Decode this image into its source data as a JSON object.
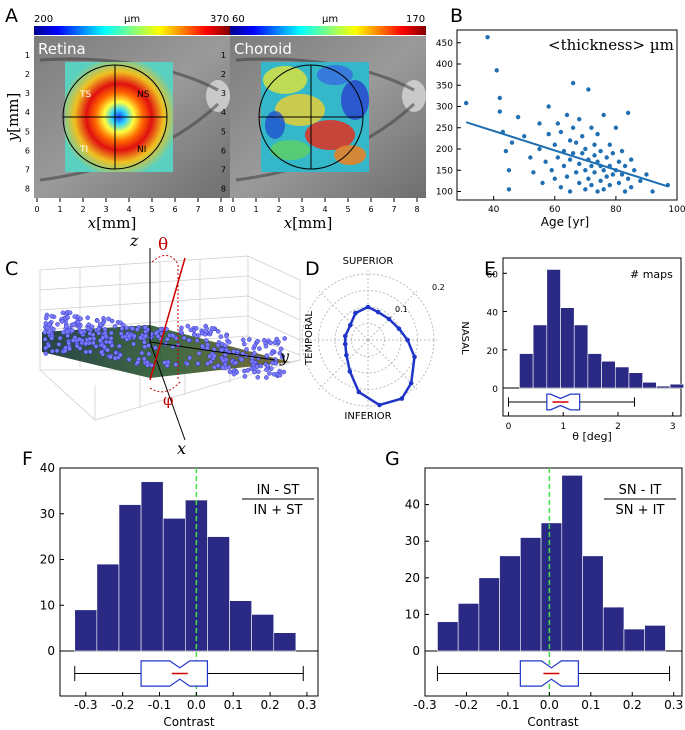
{
  "panels": {
    "A": {
      "label": "A",
      "retina": {
        "name": "Retina",
        "cb_min": "200",
        "cb_max": "370",
        "cb_unit": "µm",
        "quadrants": [
          "TS",
          "NS",
          "TI",
          "NI"
        ]
      },
      "choroid": {
        "name": "Choroid",
        "cb_min": "60",
        "cb_max": "170",
        "cb_unit": "µm"
      },
      "xticks": [
        "0",
        "1",
        "2",
        "3",
        "4",
        "5",
        "6",
        "7",
        "8"
      ],
      "yticks": [
        "1",
        "2",
        "3",
        "4",
        "5",
        "6",
        "7",
        "8"
      ],
      "xlabel_var": "x",
      "xlabel_unit": "[mm]",
      "ylabel_var": "y",
      "ylabel_unit": "[mm]"
    },
    "B": {
      "label": "B",
      "annotation": "<thickness> µm",
      "xlabel": "Age [yr]",
      "xticks": [
        "40",
        "60",
        "80",
        "100"
      ],
      "yticks": [
        "100",
        "150",
        "200",
        "250",
        "300",
        "350",
        "400",
        "450"
      ],
      "color": "#1f6fb2"
    },
    "C": {
      "label": "C",
      "axis_z": "z",
      "axis_y": "y",
      "axis_x": "x",
      "angle_theta": "θ",
      "angle_phi": "φ"
    },
    "D": {
      "label": "D",
      "directions": [
        "SUPERIOR",
        "NASAL",
        "INFERIOR",
        "TEMPORAL"
      ],
      "radial_labels": [
        "0.1",
        "0.2"
      ]
    },
    "E": {
      "label": "E",
      "annotation": "# maps",
      "xlabel": "θ [deg]",
      "xticks": [
        "0",
        "1",
        "2",
        "3"
      ],
      "yticks": [
        "0",
        "20",
        "40",
        "60"
      ]
    },
    "F": {
      "label": "F",
      "formula_num": "IN - ST",
      "formula_den": "IN + ST",
      "xlabel": "Contrast",
      "xticks": [
        "-0.3",
        "-0.2",
        "-0.1",
        "0.0",
        "0.1",
        "0.2",
        "0.3"
      ],
      "yticks": [
        "0",
        "10",
        "20",
        "30",
        "40"
      ]
    },
    "G": {
      "label": "G",
      "formula_num": "SN - IT",
      "formula_den": "SN + IT",
      "xlabel": "Contrast",
      "xticks": [
        "-0.3",
        "-0.2",
        "-0.1",
        "0.0",
        "0.1",
        "0.2",
        "0.3"
      ],
      "yticks": [
        "0",
        "10",
        "20",
        "30",
        "40"
      ]
    }
  },
  "colors": {
    "bar": "#2a2a85",
    "box": "#1f35c8",
    "zero_line": "#44dd44",
    "scatter": "#1f6fb2",
    "polar": "#1f35c8"
  },
  "chart_data": [
    {
      "id": "B",
      "type": "scatter",
      "title": "<thickness> µm",
      "xlabel": "Age [yr]",
      "ylabel": "",
      "xlim": [
        28,
        100
      ],
      "ylim": [
        80,
        480
      ],
      "points": [
        [
          31,
          308
        ],
        [
          38,
          463
        ],
        [
          41,
          385
        ],
        [
          42,
          320
        ],
        [
          42,
          288
        ],
        [
          43,
          240
        ],
        [
          44,
          195
        ],
        [
          45,
          150
        ],
        [
          45,
          105
        ],
        [
          46,
          215
        ],
        [
          48,
          275
        ],
        [
          50,
          230
        ],
        [
          52,
          180
        ],
        [
          53,
          145
        ],
        [
          55,
          260
        ],
        [
          55,
          200
        ],
        [
          56,
          120
        ],
        [
          57,
          170
        ],
        [
          58,
          235
        ],
        [
          58,
          300
        ],
        [
          59,
          150
        ],
        [
          60,
          210
        ],
        [
          60,
          130
        ],
        [
          61,
          180
        ],
        [
          61,
          260
        ],
        [
          62,
          110
        ],
        [
          62,
          240
        ],
        [
          63,
          195
        ],
        [
          63,
          160
        ],
        [
          64,
          280
        ],
        [
          64,
          135
        ],
        [
          65,
          220
        ],
        [
          65,
          175
        ],
        [
          65,
          100
        ],
        [
          66,
          250
        ],
        [
          66,
          190
        ],
        [
          66,
          355
        ],
        [
          67,
          145
        ],
        [
          67,
          215
        ],
        [
          68,
          165
        ],
        [
          68,
          120
        ],
        [
          68,
          270
        ],
        [
          69,
          190
        ],
        [
          69,
          230
        ],
        [
          70,
          150
        ],
        [
          70,
          105
        ],
        [
          70,
          200
        ],
        [
          71,
          175
        ],
        [
          71,
          130
        ],
        [
          71,
          340
        ],
        [
          72,
          250
        ],
        [
          72,
          160
        ],
        [
          72,
          115
        ],
        [
          73,
          210
        ],
        [
          73,
          185
        ],
        [
          73,
          145
        ],
        [
          74,
          170
        ],
        [
          74,
          100
        ],
        [
          74,
          235
        ],
        [
          75,
          160
        ],
        [
          75,
          125
        ],
        [
          75,
          195
        ],
        [
          76,
          150
        ],
        [
          76,
          280
        ],
        [
          76,
          105
        ],
        [
          77,
          180
        ],
        [
          77,
          135
        ],
        [
          78,
          210
        ],
        [
          78,
          160
        ],
        [
          78,
          115
        ],
        [
          79,
          140
        ],
        [
          79,
          190
        ],
        [
          80,
          150
        ],
        [
          80,
          250
        ],
        [
          81,
          120
        ],
        [
          81,
          170
        ],
        [
          82,
          195
        ],
        [
          82,
          140
        ],
        [
          83,
          100
        ],
        [
          83,
          160
        ],
        [
          84,
          285
        ],
        [
          84,
          130
        ],
        [
          85,
          175
        ],
        [
          85,
          110
        ],
        [
          86,
          150
        ],
        [
          88,
          125
        ],
        [
          90,
          140
        ],
        [
          92,
          100
        ],
        [
          97,
          115
        ]
      ],
      "fit_line": {
        "x": [
          31,
          97
        ],
        "y": [
          263,
          112
        ]
      }
    },
    {
      "id": "D",
      "type": "polar",
      "r_ticks": [
        0.1,
        0.2
      ],
      "angles_deg": [
        90,
        70,
        45,
        20,
        0,
        -20,
        -45,
        -60,
        -80,
        -100,
        -120,
        -145,
        -170,
        170,
        140,
        115
      ],
      "r": [
        0.1,
        0.09,
        0.09,
        0.1,
        0.12,
        0.15,
        0.185,
        0.205,
        0.2,
        0.16,
        0.11,
        0.08,
        0.07,
        0.07,
        0.07,
        0.09
      ]
    },
    {
      "id": "E",
      "type": "bar",
      "title": "# maps",
      "xlabel": "θ [deg]",
      "ylabel": "",
      "xlim": [
        -0.1,
        3.15
      ],
      "ylim": [
        0,
        68
      ],
      "bin_edges": [
        0.2,
        0.45,
        0.7,
        0.95,
        1.2,
        1.45,
        1.7,
        1.95,
        2.2,
        2.45,
        2.7,
        2.95,
        3.2
      ],
      "values": [
        18,
        33,
        62,
        42,
        33,
        18,
        14,
        11,
        8,
        3,
        1,
        2
      ],
      "box": {
        "whisker_low": 0.0,
        "q1": 0.7,
        "median": 0.95,
        "q3": 1.3,
        "whisker_high": 2.3
      }
    },
    {
      "id": "F",
      "type": "bar",
      "title": "(IN - ST)/(IN + ST)",
      "xlabel": "Contrast",
      "ylabel": "",
      "xlim": [
        -0.37,
        0.33
      ],
      "ylim": [
        0,
        40
      ],
      "bin_edges": [
        -0.33,
        -0.27,
        -0.21,
        -0.15,
        -0.09,
        -0.03,
        0.03,
        0.09,
        0.15,
        0.21,
        0.27
      ],
      "values": [
        9,
        19,
        32,
        37,
        29,
        33,
        25,
        11,
        8,
        4
      ],
      "box": {
        "whisker_low": -0.33,
        "q1": -0.15,
        "median": -0.045,
        "q3": 0.03,
        "whisker_high": 0.29
      }
    },
    {
      "id": "G",
      "type": "bar",
      "title": "(SN - IT)/(SN + IT)",
      "xlabel": "Contrast",
      "ylabel": "",
      "xlim": [
        -0.3,
        0.32
      ],
      "ylim": [
        0,
        50
      ],
      "bin_edges": [
        -0.27,
        -0.22,
        -0.17,
        -0.12,
        -0.07,
        -0.02,
        0.03,
        0.08,
        0.13,
        0.18,
        0.23,
        0.28
      ],
      "values": [
        8,
        13,
        20,
        26,
        31,
        35,
        48,
        26,
        12,
        6,
        7
      ],
      "box": {
        "whisker_low": -0.27,
        "q1": -0.07,
        "median": 0.005,
        "q3": 0.07,
        "whisker_high": 0.29
      }
    }
  ]
}
